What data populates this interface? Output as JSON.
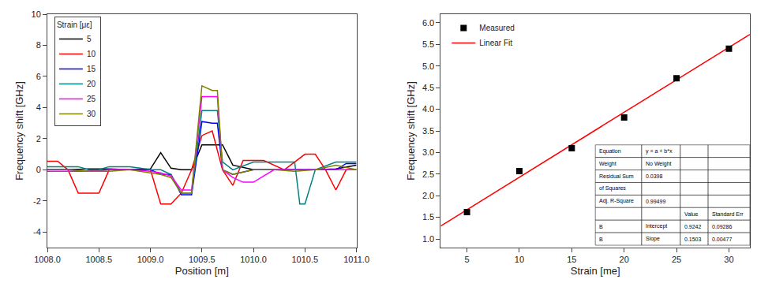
{
  "chart_data": [
    {
      "type": "line",
      "xlabel": "Position [m]",
      "ylabel": "Frequency shift [GHz]",
      "xlim": [
        1008.0,
        1011.0
      ],
      "ylim": [
        -5,
        10
      ],
      "xticks": [
        {
          "value": 1008.0,
          "label": "1008.0"
        },
        1008.5,
        {
          "value": 1009.0,
          "label": "1009.0"
        },
        1009.5,
        {
          "value": 1010.0,
          "label": "1010.0"
        },
        1010.5,
        {
          "value": 1011.0,
          "label": "1011.0"
        }
      ],
      "yticks": [
        -4,
        -2,
        0,
        2,
        4,
        6,
        8,
        10
      ],
      "grid": false,
      "legend": "upper left",
      "legend_title": "Strain [με]",
      "series": [
        {
          "name": "5",
          "color": "#000000",
          "x": [
            1008.0,
            1008.2,
            1008.4,
            1008.6,
            1008.8,
            1009.0,
            1009.1,
            1009.2,
            1009.3,
            1009.4,
            1009.5,
            1009.6,
            1009.7,
            1009.8,
            1010.0,
            1010.2,
            1010.4,
            1010.6,
            1010.8,
            1011.0
          ],
          "values": [
            0.0,
            0.0,
            0.05,
            0.05,
            0.0,
            0.05,
            1.1,
            0.1,
            0.0,
            0.0,
            1.6,
            1.6,
            1.6,
            0.3,
            0.0,
            0.0,
            0.0,
            0.0,
            0.05,
            0.3
          ]
        },
        {
          "name": "10",
          "color": "#ff0000",
          "x": [
            1008.0,
            1008.1,
            1008.2,
            1008.3,
            1008.4,
            1008.5,
            1008.6,
            1008.8,
            1009.0,
            1009.1,
            1009.2,
            1009.3,
            1009.4,
            1009.5,
            1009.6,
            1009.7,
            1009.75,
            1009.8,
            1009.9,
            1010.0,
            1010.1,
            1010.3,
            1010.5,
            1010.6,
            1010.7,
            1010.8,
            1010.9,
            1011.0
          ],
          "values": [
            0.55,
            0.55,
            0.0,
            -1.5,
            -1.5,
            -1.5,
            0.0,
            0.0,
            0.0,
            -2.2,
            -2.2,
            -1.5,
            0.0,
            2.2,
            2.5,
            0.0,
            -0.5,
            -1.0,
            0.6,
            0.6,
            0.6,
            0.0,
            1.0,
            1.0,
            0.0,
            -1.3,
            0.0,
            0.0
          ]
        },
        {
          "name": "15",
          "color": "#0000ff",
          "x": [
            1008.0,
            1008.2,
            1008.4,
            1008.6,
            1008.8,
            1009.0,
            1009.1,
            1009.2,
            1009.3,
            1009.4,
            1009.5,
            1009.6,
            1009.65,
            1009.7,
            1009.8,
            1010.0,
            1010.2,
            1010.4,
            1010.6,
            1010.8,
            1010.9,
            1011.0
          ],
          "values": [
            0.0,
            0.0,
            -0.1,
            0.0,
            0.0,
            0.0,
            -0.3,
            -0.3,
            -1.6,
            -1.6,
            3.1,
            3.0,
            3.0,
            0.0,
            -0.3,
            0.0,
            0.0,
            0.0,
            0.0,
            0.0,
            0.4,
            0.4
          ]
        },
        {
          "name": "20",
          "color": "#008080",
          "x": [
            1008.0,
            1008.1,
            1008.2,
            1008.3,
            1008.4,
            1008.5,
            1008.6,
            1008.7,
            1008.8,
            1008.9,
            1009.0,
            1009.1,
            1009.2,
            1009.3,
            1009.4,
            1009.5,
            1009.6,
            1009.65,
            1009.7,
            1009.8,
            1010.0,
            1010.2,
            1010.4,
            1010.45,
            1010.5,
            1010.6,
            1010.8,
            1011.0
          ],
          "values": [
            0.2,
            0.2,
            0.2,
            0.2,
            0.0,
            0.0,
            0.2,
            0.2,
            0.2,
            0.1,
            0.0,
            0.0,
            -0.3,
            -1.5,
            -1.5,
            3.8,
            3.8,
            3.8,
            0.5,
            0.0,
            0.5,
            0.5,
            0.5,
            -2.2,
            -2.2,
            0.0,
            0.5,
            0.5
          ]
        },
        {
          "name": "25",
          "color": "#ff00ff",
          "x": [
            1008.0,
            1008.2,
            1008.4,
            1008.6,
            1008.8,
            1009.0,
            1009.1,
            1009.2,
            1009.3,
            1009.4,
            1009.5,
            1009.6,
            1009.65,
            1009.7,
            1009.8,
            1009.9,
            1010.0,
            1010.2,
            1010.4,
            1010.6,
            1010.8,
            1011.0
          ],
          "values": [
            -0.1,
            -0.1,
            -0.1,
            0.0,
            0.0,
            -0.1,
            -0.2,
            -0.4,
            -1.3,
            -1.3,
            4.7,
            4.7,
            4.7,
            0.0,
            -0.5,
            -0.8,
            -0.8,
            0.0,
            0.0,
            0.0,
            0.0,
            0.0
          ]
        },
        {
          "name": "30",
          "color": "#808000",
          "x": [
            1008.0,
            1008.2,
            1008.4,
            1008.6,
            1008.8,
            1009.0,
            1009.1,
            1009.2,
            1009.3,
            1009.4,
            1009.5,
            1009.6,
            1009.65,
            1009.7,
            1009.8,
            1010.0,
            1010.2,
            1010.4,
            1010.6,
            1010.8,
            1011.0
          ],
          "values": [
            0.0,
            0.0,
            -0.1,
            -0.1,
            0.0,
            -0.2,
            -0.3,
            -0.5,
            -1.5,
            -1.5,
            5.4,
            5.1,
            5.1,
            0.0,
            -0.3,
            0.0,
            0.0,
            -0.1,
            0.0,
            0.3,
            0.0
          ]
        }
      ]
    },
    {
      "type": "scatter",
      "xlabel": "Strain [me]",
      "ylabel": "Frequency shift [GHz]",
      "xlim": [
        2.5,
        32
      ],
      "ylim": [
        0.8,
        6.2
      ],
      "xticks": [
        5,
        10,
        15,
        20,
        25,
        30
      ],
      "yticks": [
        {
          "value": 1.0,
          "label": "1.0"
        },
        1.5,
        {
          "value": 2.0,
          "label": "2.0"
        },
        2.5,
        {
          "value": 3.0,
          "label": "3.0"
        },
        3.5,
        {
          "value": 4.0,
          "label": "4.0"
        },
        4.5,
        {
          "value": 5.0,
          "label": "5.0"
        },
        5.5,
        {
          "value": 6.0,
          "label": "6.0"
        }
      ],
      "grid": false,
      "legend": "upper left",
      "series": [
        {
          "name": "Measured",
          "type": "scatter",
          "color": "#000000",
          "marker": "square",
          "x": [
            5,
            10,
            15,
            20,
            25,
            30
          ],
          "values": [
            1.62,
            2.57,
            3.1,
            3.81,
            4.72,
            5.4
          ]
        },
        {
          "name": "Linear Fit",
          "type": "line",
          "color": "#ff0000",
          "x": [
            2.5,
            32.0
          ],
          "values": [
            1.29995,
            5.7338
          ]
        }
      ],
      "table": [
        [
          "Equation",
          "y = a + b*x",
          null,
          null
        ],
        [
          "Weight",
          "No Weight",
          null,
          null
        ],
        [
          "Residual Sum",
          "0.0398",
          null,
          null
        ],
        [
          "of Squares",
          null,
          null,
          null
        ],
        [
          "Adj. R-Square",
          "0.99499",
          null,
          null
        ],
        [
          null,
          null,
          "Value",
          "Standard Err"
        ],
        [
          "B",
          "Intercept",
          "0.9242",
          "0.09286"
        ],
        [
          "B",
          "Slope",
          "0.1503",
          "0.00477"
        ]
      ]
    }
  ]
}
